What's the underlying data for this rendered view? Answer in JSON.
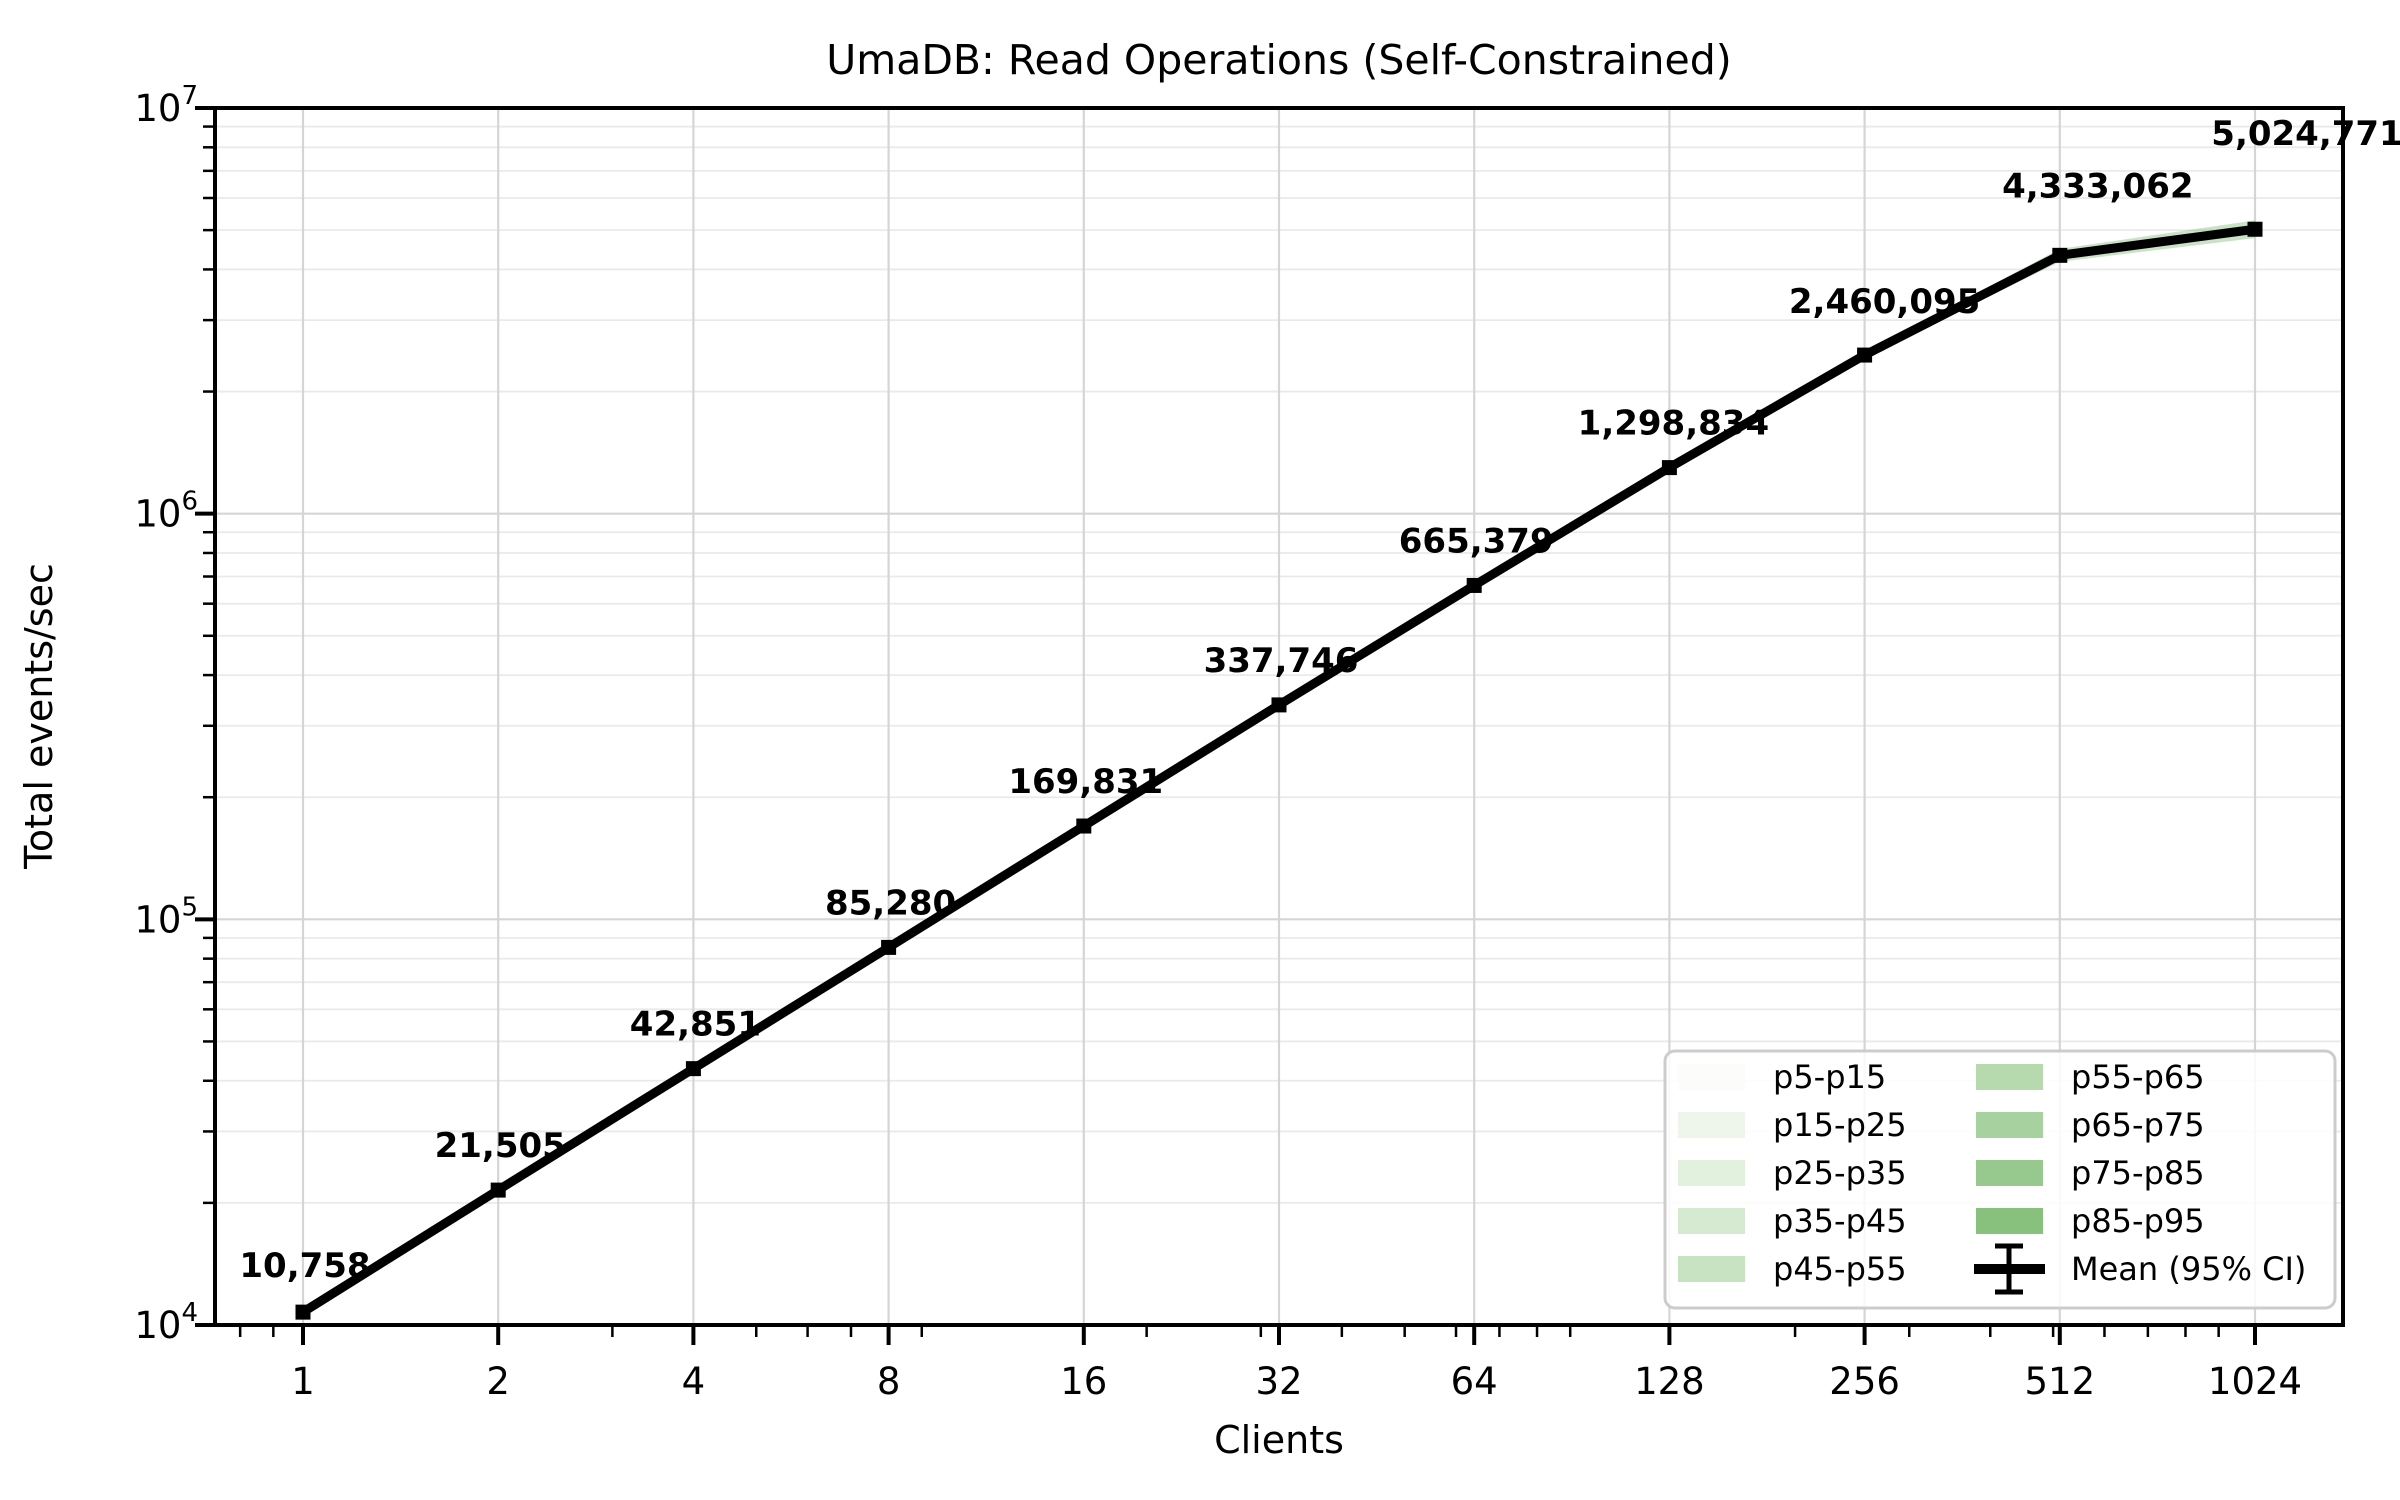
{
  "title": "UmaDB: Read Operations (Self-Constrained)",
  "chart_data": {
    "type": "line",
    "title": "UmaDB: Read Operations (Self-Constrained)",
    "xlabel": "Clients",
    "ylabel": "Total events/sec",
    "x_scale": "log2",
    "y_scale": "log10",
    "ylim": [
      10000,
      10000000
    ],
    "grid": true,
    "x": [
      1,
      2,
      4,
      8,
      16,
      32,
      64,
      128,
      256,
      512,
      1024
    ],
    "x_tick_labels": [
      "1",
      "2",
      "4",
      "8",
      "16",
      "32",
      "64",
      "128",
      "256",
      "512",
      "1024"
    ],
    "y_ticks": [
      10000,
      100000,
      1000000,
      10000000
    ],
    "y_tick_exponents": [
      "4",
      "5",
      "6",
      "7"
    ],
    "series": [
      {
        "name": "Mean (95% CI)",
        "color": "#000000",
        "values": [
          10758,
          21505,
          42851,
          85280,
          169831,
          337746,
          665379,
          1298834,
          2460095,
          4333062,
          5024771
        ],
        "point_labels": [
          "10,758",
          "21,505",
          "42,851",
          "85,280",
          "169,831",
          "337,746",
          "665,379",
          "1,298,834",
          "2,460,095",
          "4,333,062",
          "5,024,771"
        ]
      }
    ],
    "legend": {
      "position": "lower right",
      "entries": [
        {
          "label": "p5-p15",
          "type": "patch",
          "color": "#fcfdfb"
        },
        {
          "label": "p15-p25",
          "type": "patch",
          "color": "#eef6ec"
        },
        {
          "label": "p25-p35",
          "type": "patch",
          "color": "#e2f0de"
        },
        {
          "label": "p35-p45",
          "type": "patch",
          "color": "#d5ead0"
        },
        {
          "label": "p45-p55",
          "type": "patch",
          "color": "#c8e3c1"
        },
        {
          "label": "p55-p65",
          "type": "patch",
          "color": "#b6d9ae"
        },
        {
          "label": "p65-p75",
          "type": "patch",
          "color": "#a7d19e"
        },
        {
          "label": "p75-p85",
          "type": "patch",
          "color": "#97c98e"
        },
        {
          "label": "p85-p95",
          "type": "patch",
          "color": "#88c17e"
        },
        {
          "label": "Mean (95% CI)",
          "type": "errorbar",
          "color": "#000000"
        }
      ]
    },
    "colors": {
      "line": "#000000",
      "grid_major": "#d5d5d5",
      "grid_minor": "#eaeaea",
      "band": "#8ac180",
      "legend_border": "#cccccc"
    }
  }
}
